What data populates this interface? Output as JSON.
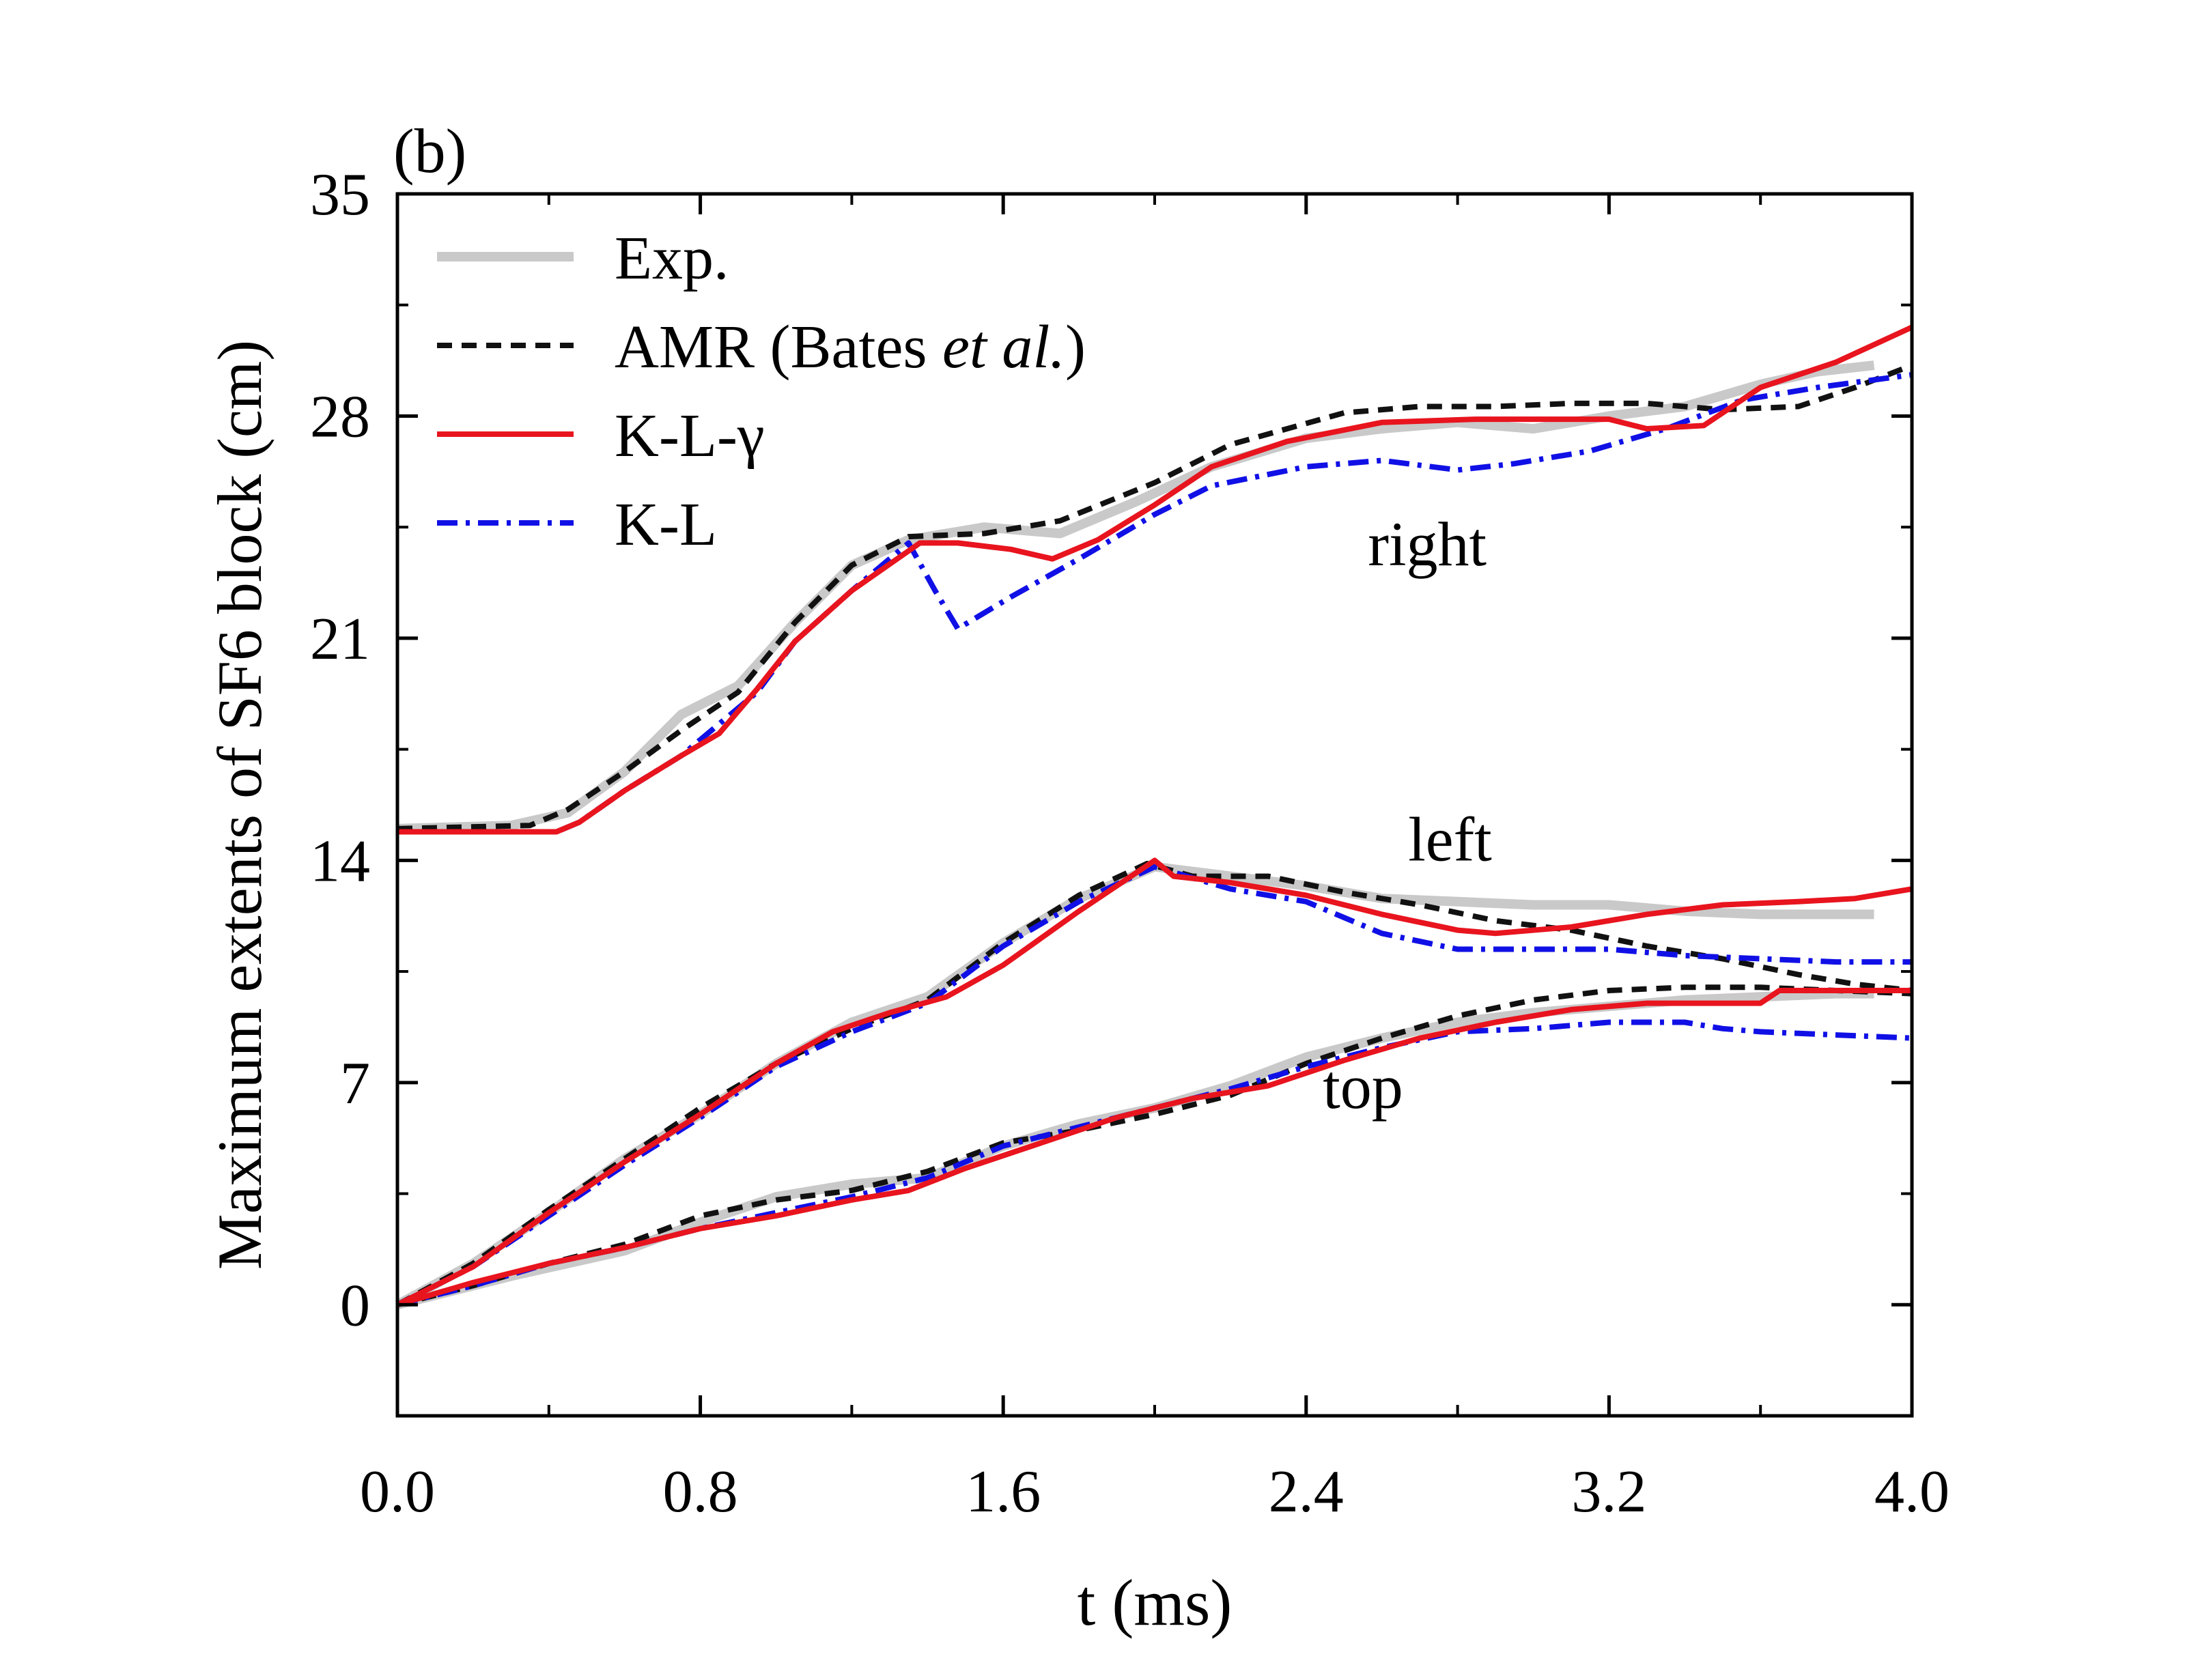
{
  "chart_data": {
    "type": "line",
    "panel_label": "(b)",
    "title": "",
    "xlabel": "t (ms)",
    "ylabel": "Maximum extents of SF6 block (cm)",
    "xlim": [
      0.0,
      4.0
    ],
    "ylim": [
      -3.5,
      35
    ],
    "xticks": [
      0.0,
      0.8,
      1.6,
      2.4,
      3.2,
      4.0
    ],
    "xtick_labels": [
      "0.0",
      "0.8",
      "1.6",
      "2.4",
      "3.2",
      "4.0"
    ],
    "xminor_step": 0.4,
    "yticks": [
      0,
      7,
      14,
      21,
      28,
      35
    ],
    "ytick_labels": [
      "0",
      "7",
      "14",
      "21",
      "28",
      "35"
    ],
    "yminor_step": 3.5,
    "grid": false,
    "legend_position": "top-left",
    "legend": [
      {
        "key": "exp",
        "label": "Exp."
      },
      {
        "key": "amr",
        "label_parts": [
          {
            "text": "AMR (Bates ",
            "italic": false
          },
          {
            "text": "et al.",
            "italic": true
          },
          {
            "text": ")",
            "italic": false
          }
        ]
      },
      {
        "key": "klg",
        "label": "K-L-γ"
      },
      {
        "key": "kl",
        "label": "K-L"
      }
    ],
    "styles": {
      "exp": {
        "color": "#c0c0c0",
        "dash": "solid"
      },
      "amr": {
        "color": "#111111",
        "dash": "dash"
      },
      "klg": {
        "color": "#e8141e",
        "dash": "solid"
      },
      "kl": {
        "color": "#1010e6",
        "dash": "dashdot"
      }
    },
    "annotations": [
      {
        "text": "right",
        "x": 2.72,
        "y": 23.3
      },
      {
        "text": "left",
        "x": 2.78,
        "y": 14.0
      },
      {
        "text": "top",
        "x": 2.55,
        "y": 6.2
      }
    ],
    "series": [
      {
        "group": "right",
        "key": "exp",
        "name": "Exp.",
        "x": [
          0.0,
          0.3,
          0.45,
          0.6,
          0.75,
          0.9,
          1.05,
          1.2,
          1.35,
          1.55,
          1.75,
          1.95,
          2.15,
          2.4,
          2.6,
          2.8,
          3.0,
          3.2,
          3.4,
          3.6,
          3.75,
          3.9
        ],
        "y": [
          15.0,
          15.1,
          15.5,
          16.8,
          18.6,
          19.5,
          21.5,
          23.3,
          24.1,
          24.5,
          24.3,
          25.3,
          26.4,
          27.3,
          27.6,
          27.8,
          27.6,
          28.0,
          28.3,
          29.0,
          29.4,
          29.6
        ]
      },
      {
        "group": "right",
        "key": "amr",
        "name": "AMR",
        "x": [
          0.0,
          0.35,
          0.45,
          0.6,
          0.75,
          0.9,
          1.05,
          1.2,
          1.35,
          1.55,
          1.75,
          2.0,
          2.2,
          2.5,
          2.7,
          2.9,
          3.1,
          3.3,
          3.5,
          3.7,
          3.85,
          4.0
        ],
        "y": [
          15.0,
          15.1,
          15.6,
          16.8,
          18.1,
          19.3,
          21.5,
          23.3,
          24.2,
          24.3,
          24.7,
          25.9,
          27.1,
          28.1,
          28.3,
          28.3,
          28.4,
          28.4,
          28.2,
          28.3,
          28.9,
          29.6
        ]
      },
      {
        "group": "right",
        "key": "klg",
        "name": "K-L-γ",
        "x": [
          0.0,
          0.25,
          0.42,
          0.48,
          0.6,
          0.75,
          0.85,
          0.95,
          1.05,
          1.2,
          1.38,
          1.48,
          1.62,
          1.73,
          1.85,
          2.0,
          2.15,
          2.35,
          2.6,
          2.85,
          3.0,
          3.2,
          3.3,
          3.45,
          3.6,
          3.8,
          4.0
        ],
        "y": [
          14.9,
          14.9,
          14.9,
          15.2,
          16.2,
          17.3,
          18.0,
          19.4,
          20.9,
          22.5,
          24.0,
          24.0,
          23.8,
          23.5,
          24.1,
          25.2,
          26.4,
          27.2,
          27.8,
          27.9,
          27.9,
          27.9,
          27.6,
          27.7,
          28.9,
          29.7,
          30.8
        ]
      },
      {
        "group": "right",
        "key": "kl",
        "name": "K-L",
        "x": [
          0.0,
          0.25,
          0.42,
          0.48,
          0.6,
          0.75,
          0.85,
          0.95,
          1.05,
          1.2,
          1.35,
          1.42,
          1.48,
          1.62,
          1.8,
          2.0,
          2.15,
          2.4,
          2.6,
          2.8,
          2.95,
          3.15,
          3.35,
          3.55,
          3.75,
          4.0
        ],
        "y": [
          14.9,
          14.9,
          14.9,
          15.2,
          16.2,
          17.3,
          18.3,
          19.3,
          20.9,
          22.5,
          24.0,
          22.5,
          21.3,
          22.3,
          23.5,
          24.9,
          25.8,
          26.4,
          26.6,
          26.3,
          26.5,
          26.9,
          27.6,
          28.5,
          28.9,
          29.3
        ]
      },
      {
        "group": "left",
        "key": "exp",
        "name": "Exp.",
        "x": [
          0.0,
          0.2,
          0.4,
          0.6,
          0.8,
          1.0,
          1.2,
          1.4,
          1.6,
          1.8,
          2.0,
          2.2,
          2.4,
          2.6,
          2.8,
          3.0,
          3.2,
          3.4,
          3.6,
          3.8,
          3.9
        ],
        "y": [
          0.0,
          1.3,
          2.9,
          4.6,
          6.0,
          7.6,
          8.9,
          9.7,
          11.4,
          12.8,
          13.8,
          13.5,
          13.2,
          12.8,
          12.7,
          12.6,
          12.6,
          12.4,
          12.3,
          12.3,
          12.3
        ]
      },
      {
        "group": "left",
        "key": "amr",
        "name": "AMR",
        "x": [
          0.0,
          0.2,
          0.4,
          0.6,
          0.8,
          1.0,
          1.2,
          1.4,
          1.6,
          1.8,
          1.98,
          2.1,
          2.3,
          2.5,
          2.7,
          2.9,
          3.1,
          3.3,
          3.5,
          3.7,
          3.85,
          4.0
        ],
        "y": [
          0.0,
          1.3,
          3.0,
          4.6,
          6.2,
          7.6,
          8.7,
          9.6,
          11.4,
          12.9,
          13.9,
          13.5,
          13.5,
          13.0,
          12.6,
          12.1,
          11.8,
          11.3,
          10.9,
          10.4,
          10.1,
          9.9
        ]
      },
      {
        "group": "left",
        "key": "klg",
        "name": "K-L-γ",
        "x": [
          0.0,
          0.2,
          0.4,
          0.6,
          0.8,
          1.0,
          1.15,
          1.3,
          1.45,
          1.6,
          1.8,
          2.0,
          2.05,
          2.2,
          2.4,
          2.6,
          2.8,
          2.9,
          3.1,
          3.3,
          3.5,
          3.7,
          3.85,
          4.0
        ],
        "y": [
          0.0,
          1.2,
          2.9,
          4.5,
          6.0,
          7.6,
          8.6,
          9.2,
          9.7,
          10.7,
          12.4,
          14.0,
          13.5,
          13.3,
          12.9,
          12.3,
          11.8,
          11.7,
          11.9,
          12.3,
          12.6,
          12.7,
          12.8,
          13.1
        ]
      },
      {
        "group": "left",
        "key": "kl",
        "name": "K-L",
        "x": [
          0.0,
          0.2,
          0.4,
          0.6,
          0.8,
          1.0,
          1.2,
          1.4,
          1.6,
          1.8,
          2.0,
          2.2,
          2.4,
          2.6,
          2.8,
          3.0,
          3.2,
          3.4,
          3.6,
          3.8,
          4.0
        ],
        "y": [
          0.0,
          1.2,
          2.8,
          4.4,
          5.9,
          7.5,
          8.6,
          9.5,
          11.3,
          12.7,
          13.8,
          13.1,
          12.7,
          11.7,
          11.2,
          11.2,
          11.2,
          11.0,
          10.9,
          10.8,
          10.8
        ]
      },
      {
        "group": "top",
        "key": "exp",
        "name": "Exp.",
        "x": [
          0.0,
          0.3,
          0.6,
          0.8,
          1.0,
          1.2,
          1.4,
          1.6,
          1.8,
          2.0,
          2.2,
          2.4,
          2.6,
          2.8,
          3.0,
          3.2,
          3.4,
          3.6,
          3.8,
          3.9
        ],
        "y": [
          0.0,
          0.9,
          1.7,
          2.6,
          3.4,
          3.8,
          4.0,
          5.0,
          5.7,
          6.2,
          6.9,
          7.8,
          8.4,
          8.9,
          9.2,
          9.4,
          9.6,
          9.7,
          9.8,
          9.8
        ]
      },
      {
        "group": "top",
        "key": "amr",
        "name": "AMR",
        "x": [
          0.0,
          0.2,
          0.4,
          0.6,
          0.8,
          1.0,
          1.2,
          1.4,
          1.6,
          1.8,
          2.0,
          2.2,
          2.4,
          2.6,
          2.8,
          3.0,
          3.2,
          3.4,
          3.6,
          3.8,
          4.0
        ],
        "y": [
          0.0,
          0.6,
          1.3,
          1.9,
          2.8,
          3.3,
          3.6,
          4.2,
          5.1,
          5.5,
          6.0,
          6.6,
          7.6,
          8.4,
          9.1,
          9.6,
          9.9,
          10.0,
          10.0,
          9.9,
          9.8
        ]
      },
      {
        "group": "top",
        "key": "klg",
        "name": "K-L-γ",
        "x": [
          0.0,
          0.2,
          0.4,
          0.6,
          0.8,
          1.0,
          1.2,
          1.35,
          1.5,
          1.7,
          1.9,
          2.1,
          2.3,
          2.5,
          2.7,
          2.9,
          3.1,
          3.3,
          3.5,
          3.6,
          3.65,
          3.8,
          4.0
        ],
        "y": [
          0.0,
          0.7,
          1.3,
          1.8,
          2.4,
          2.8,
          3.3,
          3.6,
          4.3,
          5.1,
          5.9,
          6.5,
          6.9,
          7.7,
          8.4,
          8.9,
          9.3,
          9.5,
          9.5,
          9.5,
          9.9,
          9.9,
          9.9
        ]
      },
      {
        "group": "top",
        "key": "kl",
        "name": "K-L",
        "x": [
          0.0,
          0.2,
          0.4,
          0.6,
          0.8,
          1.0,
          1.2,
          1.4,
          1.6,
          1.8,
          2.0,
          2.2,
          2.4,
          2.6,
          2.8,
          3.0,
          3.2,
          3.4,
          3.5,
          3.6,
          3.8,
          4.0
        ],
        "y": [
          0.0,
          0.6,
          1.3,
          1.8,
          2.4,
          2.9,
          3.4,
          4.0,
          5.0,
          5.6,
          6.2,
          6.8,
          7.5,
          8.1,
          8.6,
          8.7,
          8.9,
          8.9,
          8.7,
          8.6,
          8.5,
          8.4
        ]
      }
    ]
  }
}
